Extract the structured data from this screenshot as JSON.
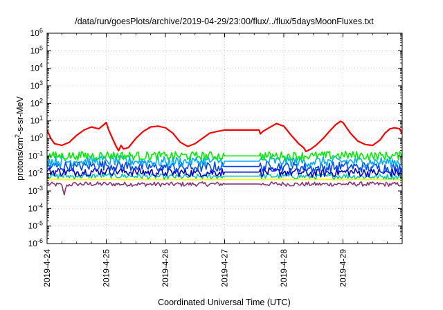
{
  "chart_data": {
    "type": "line",
    "title": "/data/run/goesPlots/archive/2019-04-29/23:00/flux/../flux/5daysMoonFluxes.txt",
    "xlabel": "Coordinated Universal Time (UTC)",
    "ylabel": {
      "prefix": "protons/cm",
      "sup": "2",
      "suffix": "-s-sr-MeV"
    },
    "y_scale": "log",
    "ylim": [
      1e-06,
      1000000.0
    ],
    "y_ticks": [
      {
        "value": 1e-06,
        "base": "10",
        "exp": "-6"
      },
      {
        "value": 1e-05,
        "base": "10",
        "exp": "-5"
      },
      {
        "value": 0.0001,
        "base": "10",
        "exp": "-4"
      },
      {
        "value": 0.001,
        "base": "10",
        "exp": "-3"
      },
      {
        "value": 0.01,
        "base": "10",
        "exp": "-2"
      },
      {
        "value": 0.1,
        "base": "10",
        "exp": "-1"
      },
      {
        "value": 1,
        "base": "10",
        "exp": "0"
      },
      {
        "value": 10,
        "base": "10",
        "exp": "1"
      },
      {
        "value": 100,
        "base": "10",
        "exp": "2"
      },
      {
        "value": 1000,
        "base": "10",
        "exp": "3"
      },
      {
        "value": 10000,
        "base": "10",
        "exp": "4"
      },
      {
        "value": 100000,
        "base": "10",
        "exp": "5"
      },
      {
        "value": 1000000,
        "base": "10",
        "exp": "6"
      }
    ],
    "xlim": [
      "2019-04-24T00:00",
      "2019-04-30T00:00"
    ],
    "x_ticks": [
      "2019-4-24",
      "2019-4-25",
      "2019-4-26",
      "2019-4-27",
      "2019-4-28",
      "2019-4-29"
    ],
    "grid": true,
    "series": [
      {
        "color": "#ff0000",
        "points": [
          [
            "2019-04-24T00:00",
            3.0
          ],
          [
            "2019-04-24T01:30",
            1.0
          ],
          [
            "2019-04-24T03:00",
            0.5
          ],
          [
            "2019-04-24T06:00",
            0.4
          ],
          [
            "2019-04-24T09:00",
            0.6
          ],
          [
            "2019-04-24T12:00",
            1.5
          ],
          [
            "2019-04-24T15:00",
            3.0
          ],
          [
            "2019-04-24T18:00",
            4.5
          ],
          [
            "2019-04-24T21:00",
            3.5
          ],
          [
            "2019-04-25T00:00",
            8.0
          ],
          [
            "2019-04-25T01:00",
            3.0
          ],
          [
            "2019-04-25T02:30",
            1.0
          ],
          [
            "2019-04-25T04:00",
            0.35
          ],
          [
            "2019-04-25T05:00",
            0.2
          ],
          [
            "2019-04-25T06:00",
            0.4
          ],
          [
            "2019-04-25T07:00",
            0.25
          ],
          [
            "2019-04-25T09:00",
            0.3
          ],
          [
            "2019-04-25T12:00",
            1.0
          ],
          [
            "2019-04-25T15:00",
            2.5
          ],
          [
            "2019-04-25T18:00",
            4.5
          ],
          [
            "2019-04-25T21:00",
            5.0
          ],
          [
            "2019-04-26T00:00",
            4.0
          ],
          [
            "2019-04-26T03:00",
            2.0
          ],
          [
            "2019-04-26T06:00",
            0.6
          ],
          [
            "2019-04-26T09:00",
            0.35
          ],
          [
            "2019-04-26T12:00",
            0.5
          ],
          [
            "2019-04-26T15:00",
            1.0
          ],
          [
            "2019-04-26T18:00",
            2.0
          ],
          [
            "2019-04-26T21:00",
            2.5
          ],
          [
            "2019-04-27T00:00",
            3.0
          ],
          [
            "2019-04-27T06:00",
            3.0
          ],
          [
            "2019-04-27T12:00",
            3.0
          ],
          [
            "2019-04-27T14:00",
            3.0
          ],
          [
            "2019-04-27T14:30",
            1.8
          ],
          [
            "2019-04-27T15:30",
            2.5
          ],
          [
            "2019-04-27T18:00",
            4.0
          ],
          [
            "2019-04-27T21:00",
            7.0
          ],
          [
            "2019-04-28T00:00",
            5.0
          ],
          [
            "2019-04-28T03:00",
            1.5
          ],
          [
            "2019-04-28T06:00",
            0.5
          ],
          [
            "2019-04-28T08:00",
            0.3
          ],
          [
            "2019-04-28T09:00",
            0.18
          ],
          [
            "2019-04-28T11:00",
            0.25
          ],
          [
            "2019-04-28T13:00",
            0.4
          ],
          [
            "2019-04-28T16:00",
            1.0
          ],
          [
            "2019-04-28T19:00",
            3.0
          ],
          [
            "2019-04-28T21:00",
            6.0
          ],
          [
            "2019-04-28T23:00",
            9.5
          ],
          [
            "2019-04-29T00:00",
            8.0
          ],
          [
            "2019-04-29T03:00",
            2.0
          ],
          [
            "2019-04-29T06:00",
            0.7
          ],
          [
            "2019-04-29T09:00",
            0.45
          ],
          [
            "2019-04-29T12:00",
            0.4
          ],
          [
            "2019-04-29T15:00",
            0.8
          ],
          [
            "2019-04-29T17:00",
            2.0
          ],
          [
            "2019-04-29T19:00",
            3.5
          ],
          [
            "2019-04-29T21:00",
            4.0
          ],
          [
            "2019-04-29T23:00",
            3.5
          ],
          [
            "2019-04-30T00:00",
            1.8
          ]
        ]
      },
      {
        "color": "#00ee00",
        "noise": 0.5,
        "points": [
          [
            "2019-04-24T00:00",
            0.1
          ],
          [
            "2019-04-24T12:00",
            0.1
          ],
          [
            "2019-04-25T00:00",
            0.11
          ],
          [
            "2019-04-25T12:00",
            0.1
          ],
          [
            "2019-04-26T00:00",
            0.1
          ],
          [
            "2019-04-26T12:00",
            0.1
          ],
          [
            "2019-04-27T00:00",
            0.1
          ],
          [
            "2019-04-27T14:00",
            0.1
          ],
          [
            "2019-04-28T00:00",
            0.1
          ],
          [
            "2019-04-28T12:00",
            0.1
          ],
          [
            "2019-04-29T00:00",
            0.11
          ],
          [
            "2019-04-29T12:00",
            0.1
          ],
          [
            "2019-04-30T00:00",
            0.1
          ]
        ]
      },
      {
        "color": "#00aaff",
        "noise": 0.6,
        "points": [
          [
            "2019-04-24T00:00",
            0.05
          ],
          [
            "2019-04-24T12:00",
            0.05
          ],
          [
            "2019-04-25T00:00",
            0.055
          ],
          [
            "2019-04-25T12:00",
            0.05
          ],
          [
            "2019-04-26T00:00",
            0.045
          ],
          [
            "2019-04-26T12:00",
            0.05
          ],
          [
            "2019-04-27T00:00",
            0.05
          ],
          [
            "2019-04-27T14:00",
            0.05
          ],
          [
            "2019-04-28T00:00",
            0.05
          ],
          [
            "2019-04-28T12:00",
            0.045
          ],
          [
            "2019-04-29T00:00",
            0.05
          ],
          [
            "2019-04-29T12:00",
            0.045
          ],
          [
            "2019-04-30T00:00",
            0.045
          ]
        ]
      },
      {
        "color": "#0044ff",
        "noise": 0.6,
        "points": [
          [
            "2019-04-24T00:00",
            0.025
          ],
          [
            "2019-04-24T12:00",
            0.025
          ],
          [
            "2019-04-25T00:00",
            0.03
          ],
          [
            "2019-04-25T12:00",
            0.025
          ],
          [
            "2019-04-26T00:00",
            0.022
          ],
          [
            "2019-04-26T12:00",
            0.022
          ],
          [
            "2019-04-27T00:00",
            0.025
          ],
          [
            "2019-04-27T14:00",
            0.025
          ],
          [
            "2019-04-28T00:00",
            0.025
          ],
          [
            "2019-04-28T12:00",
            0.02
          ],
          [
            "2019-04-29T00:00",
            0.025
          ],
          [
            "2019-04-29T12:00",
            0.022
          ],
          [
            "2019-04-30T00:00",
            0.02
          ]
        ]
      },
      {
        "color": "#0000cc",
        "noise": 0.5,
        "points": [
          [
            "2019-04-24T00:00",
            0.013
          ],
          [
            "2019-04-24T12:00",
            0.012
          ],
          [
            "2019-04-25T00:00",
            0.014
          ],
          [
            "2019-04-25T12:00",
            0.012
          ],
          [
            "2019-04-26T00:00",
            0.011
          ],
          [
            "2019-04-26T12:00",
            0.011
          ],
          [
            "2019-04-27T00:00",
            0.012
          ],
          [
            "2019-04-27T14:00",
            0.012
          ],
          [
            "2019-04-28T00:00",
            0.012
          ],
          [
            "2019-04-28T12:00",
            0.01
          ],
          [
            "2019-04-29T00:00",
            0.012
          ],
          [
            "2019-04-29T12:00",
            0.011
          ],
          [
            "2019-04-30T00:00",
            0.011
          ]
        ]
      },
      {
        "color": "#00ccaa",
        "noise": 0.3,
        "points": [
          [
            "2019-04-24T00:00",
            0.007
          ],
          [
            "2019-04-24T12:00",
            0.007
          ],
          [
            "2019-04-25T00:00",
            0.0075
          ],
          [
            "2019-04-25T12:00",
            0.007
          ],
          [
            "2019-04-26T00:00",
            0.0065
          ],
          [
            "2019-04-26T12:00",
            0.0065
          ],
          [
            "2019-04-27T00:00",
            0.007
          ],
          [
            "2019-04-27T14:00",
            0.007
          ],
          [
            "2019-04-28T00:00",
            0.007
          ],
          [
            "2019-04-28T12:00",
            0.0065
          ],
          [
            "2019-04-29T00:00",
            0.007
          ],
          [
            "2019-04-29T12:00",
            0.0065
          ],
          [
            "2019-04-30T00:00",
            0.0065
          ]
        ]
      },
      {
        "color": "#ffff00",
        "noise": 0.05,
        "points": [
          [
            "2019-04-24T00:00",
            0.0045
          ],
          [
            "2019-04-25T00:00",
            0.0045
          ],
          [
            "2019-04-26T00:00",
            0.0045
          ],
          [
            "2019-04-27T00:00",
            0.0045
          ],
          [
            "2019-04-28T00:00",
            0.0045
          ],
          [
            "2019-04-29T00:00",
            0.0045
          ],
          [
            "2019-04-30T00:00",
            0.0045
          ]
        ]
      },
      {
        "color": "#883377",
        "noise": 0.25,
        "points": [
          [
            "2019-04-24T00:00",
            0.0025
          ],
          [
            "2019-04-24T06:00",
            0.0022
          ],
          [
            "2019-04-24T07:00",
            0.0006
          ],
          [
            "2019-04-24T08:00",
            0.0022
          ],
          [
            "2019-04-24T12:00",
            0.0025
          ],
          [
            "2019-04-25T00:00",
            0.0025
          ],
          [
            "2019-04-26T00:00",
            0.0024
          ],
          [
            "2019-04-27T00:00",
            0.0025
          ],
          [
            "2019-04-27T14:00",
            0.0025
          ],
          [
            "2019-04-28T00:00",
            0.0025
          ],
          [
            "2019-04-28T12:00",
            0.0024
          ],
          [
            "2019-04-29T00:00",
            0.0025
          ],
          [
            "2019-04-30T00:00",
            0.0024
          ]
        ]
      }
    ]
  }
}
